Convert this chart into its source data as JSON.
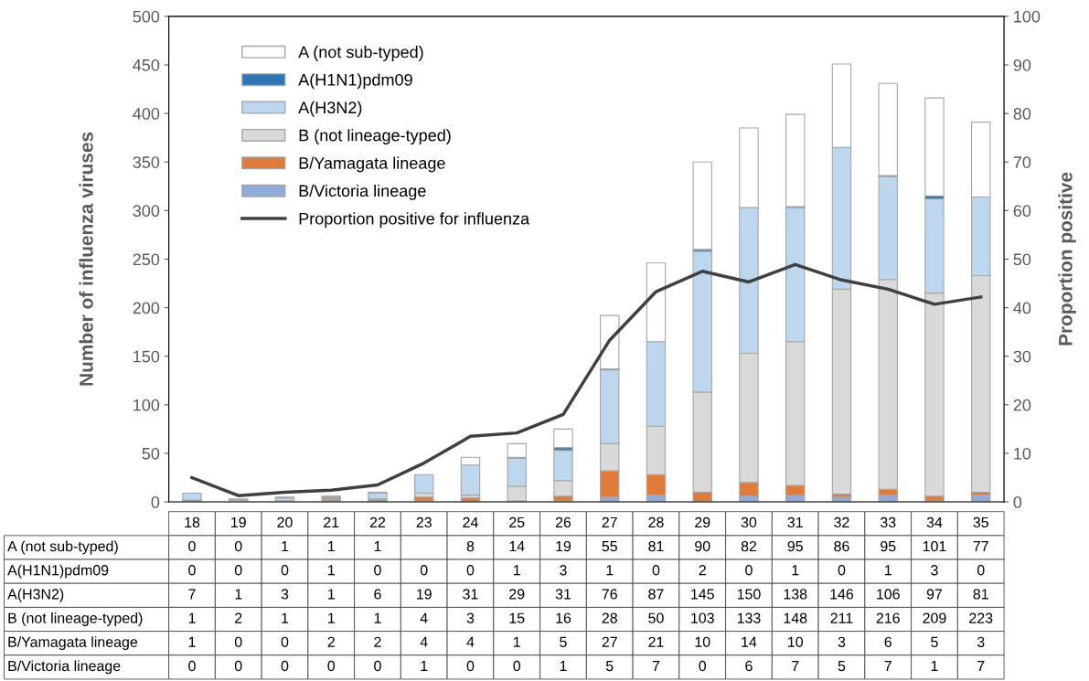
{
  "chart_data": {
    "type": "bar",
    "stacked": true,
    "ylabel": "Number of influenza viruses",
    "y2label": "Proportion positive",
    "categories": [
      "18",
      "19",
      "20",
      "21",
      "22",
      "23",
      "24",
      "25",
      "26",
      "27",
      "28",
      "29",
      "30",
      "31",
      "32",
      "33",
      "34",
      "35"
    ],
    "ylim": [
      0,
      500
    ],
    "yticks": [
      0,
      50,
      100,
      150,
      200,
      250,
      300,
      350,
      400,
      450,
      500
    ],
    "y2lim": [
      0,
      100
    ],
    "y2ticks": [
      0,
      10,
      20,
      30,
      40,
      50,
      60,
      70,
      80,
      90,
      100
    ],
    "grid": false,
    "legend": "top left",
    "series": [
      {
        "name": "B/Victoria lineage",
        "color": "#8faadc",
        "values": [
          0,
          0,
          0,
          0,
          0,
          1,
          0,
          0,
          1,
          5,
          7,
          0,
          6,
          7,
          5,
          7,
          1,
          7
        ],
        "value_labels": [
          "0",
          "0",
          "0",
          "0",
          "0",
          "1",
          "0",
          "0",
          "1",
          "5",
          "7",
          "0",
          "6",
          "7",
          "5",
          "7",
          "1",
          "7"
        ]
      },
      {
        "name": "B/Yamagata lineage",
        "color": "#e07b39",
        "values": [
          1,
          0,
          0,
          2,
          2,
          4,
          4,
          1,
          5,
          27,
          21,
          10,
          14,
          10,
          3,
          6,
          5,
          3
        ],
        "value_labels": [
          "1",
          "0",
          "0",
          "2",
          "2",
          "4",
          "4",
          "1",
          "5",
          "27",
          "21",
          "10",
          "14",
          "10",
          "3",
          "6",
          "5",
          "3"
        ]
      },
      {
        "name": "B (not lineage-typed)",
        "color": "#d9d9d9",
        "values": [
          1,
          2,
          1,
          1,
          1,
          4,
          3,
          15,
          16,
          28,
          50,
          103,
          133,
          148,
          211,
          216,
          209,
          223
        ],
        "value_labels": [
          "1",
          "2",
          "1",
          "1",
          "1",
          "4",
          "3",
          "15",
          "16",
          "28",
          "50",
          "103",
          "133",
          "148",
          "211",
          "216",
          "209",
          "223"
        ]
      },
      {
        "name": "A(H3N2)",
        "color": "#bdd7ee",
        "values": [
          7,
          1,
          3,
          1,
          6,
          19,
          31,
          29,
          31,
          76,
          87,
          145,
          150,
          138,
          146,
          106,
          97,
          81
        ],
        "value_labels": [
          "7",
          "1",
          "3",
          "1",
          "6",
          "19",
          "31",
          "29",
          "31",
          "76",
          "87",
          "145",
          "150",
          "138",
          "146",
          "106",
          "97",
          "81"
        ]
      },
      {
        "name": "A(H1N1)pdm09",
        "color": "#2e75b6",
        "values": [
          0,
          0,
          0,
          1,
          0,
          0,
          0,
          1,
          3,
          1,
          0,
          2,
          0,
          1,
          0,
          1,
          3,
          0
        ],
        "value_labels": [
          "0",
          "0",
          "0",
          "1",
          "0",
          "0",
          "0",
          "1",
          "3",
          "1",
          "0",
          "2",
          "0",
          "1",
          "0",
          "1",
          "3",
          "0"
        ]
      },
      {
        "name": "A (not sub-typed)",
        "color": "#ffffff",
        "values": [
          0,
          0,
          1,
          1,
          1,
          null,
          8,
          14,
          19,
          55,
          81,
          90,
          82,
          95,
          86,
          95,
          101,
          77
        ],
        "value_labels": [
          "0",
          "0",
          "1",
          "1",
          "1",
          null,
          "8",
          "14",
          "19",
          "55",
          "81",
          "90",
          "82",
          "95",
          "86",
          "95",
          "101",
          "77"
        ]
      },
      {
        "name": "Proportion positive for influenza",
        "type": "line",
        "axis": "y2",
        "color": "#404040",
        "marker": "none",
        "line_style": "solid",
        "values": [
          5,
          1.3,
          2,
          2.4,
          3.5,
          8,
          13.5,
          14.2,
          18,
          33.3,
          43.3,
          47.5,
          45.3,
          48.9,
          45.7,
          43.8,
          40.7,
          42.2
        ]
      }
    ]
  }
}
